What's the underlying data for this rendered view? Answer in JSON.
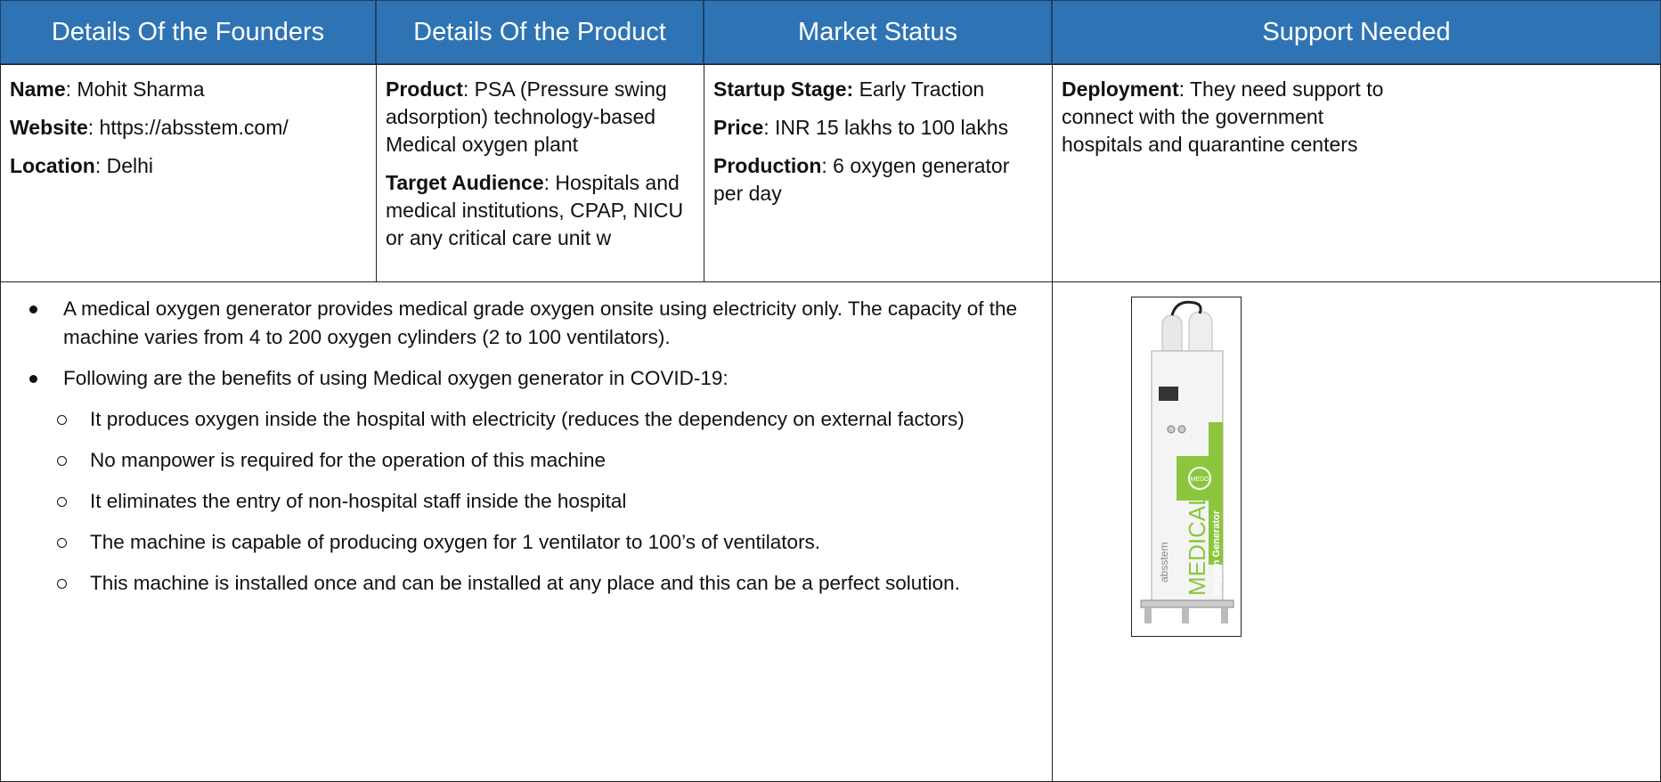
{
  "table": {
    "headers": [
      "Details Of the Founders",
      "Details Of the Product",
      "Market Status",
      "Support Needed"
    ],
    "founders": [
      {
        "label": "Name",
        "text": ":  Mohit Sharma"
      },
      {
        "label": "Website",
        "text": ":  https://absstem.com/"
      },
      {
        "label": "Location",
        "text": ": Delhi"
      }
    ],
    "product": [
      {
        "label": "Product",
        "text": ":  PSA (Pressure swing adsorption) technology-based Medical oxygen plant"
      },
      {
        "label": "Target Audience",
        "text": ":  Hospitals and medical institutions, CPAP, NICU or any critical care unit w"
      }
    ],
    "market": [
      {
        "label": "Startup Stage:",
        "text": " Early Traction"
      },
      {
        "label": "Price",
        "text": ": INR 15 lakhs to 100 lakhs"
      },
      {
        "label": "Production",
        "text": ": 6 oxygen generator per day"
      }
    ],
    "support": [
      {
        "label": "Deployment",
        "text": ": They need support to connect with the government hospitals and quarantine centers"
      }
    ],
    "bullets": [
      {
        "level": 1,
        "text": "A medical oxygen generator provides medical grade oxygen onsite using electricity only.  The capacity of the machine varies from 4 to 200 oxygen cylinders (2 to 100 ventilators)."
      },
      {
        "level": 1,
        "text": "Following are the benefits of using Medical oxygen generator in COVID-19:"
      },
      {
        "level": 2,
        "text": "It produces oxygen inside the hospital with electricity (reduces the dependency on external factors)"
      },
      {
        "level": 2,
        "text": "No manpower is required for the operation of this machine"
      },
      {
        "level": 2,
        "text": "It eliminates the entry of non-hospital staff inside the hospital"
      },
      {
        "level": 2,
        "text": "The machine is capable of producing oxygen for 1 ventilator to 100’s of ventilators."
      },
      {
        "level": 2,
        "text": "This machine is installed once and can be installed at any place and this can be a perfect solution."
      }
    ],
    "image": {
      "brand": "absstem",
      "title": "MEDICAL",
      "subtitle": "Oxygen Generator",
      "badge": "MEDO"
    }
  }
}
